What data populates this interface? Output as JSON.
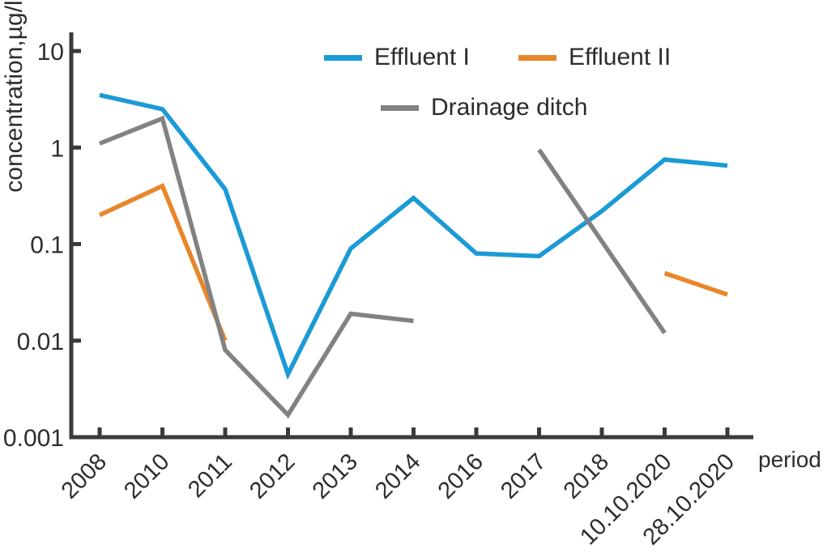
{
  "figure": {
    "background": "#ffffff",
    "axis_color": "#3a3a3a",
    "text_color": "#2d2d2d"
  },
  "axes": {
    "y_label": "concentration,µg/l",
    "x_label": "period",
    "y_ticks": [
      "10",
      "1",
      "0.1",
      "0.01",
      "0.001"
    ],
    "y_scale": "log"
  },
  "legend": {
    "items": [
      {
        "label": "Effluent I",
        "color": "#1b9ad6"
      },
      {
        "label": "Effluent II",
        "color": "#e8862a"
      },
      {
        "label": "Drainage ditch",
        "color": "#828282"
      }
    ]
  },
  "chart_data": {
    "type": "line",
    "title": "",
    "xlabel": "period",
    "ylabel": "concentration,µg/l",
    "y_scale": "log",
    "ylim": [
      0.001,
      10
    ],
    "grid": false,
    "legend_position": "top-center",
    "categories": [
      "2008",
      "2010",
      "2011",
      "2012",
      "2013",
      "2014",
      "2016",
      "2017",
      "2018",
      "10.10.2020",
      "28.10.2020"
    ],
    "series": [
      {
        "name": "Effluent I",
        "color": "#1b9ad6",
        "segments": [
          [
            [
              "2008",
              3.5
            ],
            [
              "2010",
              2.5
            ],
            [
              "2011",
              0.37
            ],
            [
              "2012",
              0.0045
            ],
            [
              "2013",
              0.09
            ],
            [
              "2014",
              0.3
            ],
            [
              "2016",
              0.08
            ],
            [
              "2017",
              0.075
            ],
            [
              "2018",
              0.22
            ],
            [
              "10.10.2020",
              0.75
            ],
            [
              "28.10.2020",
              0.65
            ]
          ]
        ]
      },
      {
        "name": "Effluent II",
        "color": "#e8862a",
        "segments": [
          [
            [
              "2008",
              0.2
            ],
            [
              "2010",
              0.4
            ],
            [
              "2011",
              0.01
            ]
          ],
          [
            [
              "10.10.2020",
              0.05
            ],
            [
              "28.10.2020",
              0.03
            ]
          ]
        ]
      },
      {
        "name": "Drainage ditch",
        "color": "#828282",
        "segments": [
          [
            [
              "2008",
              1.1
            ],
            [
              "2010",
              2.0
            ],
            [
              "2011",
              0.008
            ],
            [
              "2012",
              0.0017
            ],
            [
              "2013",
              0.019
            ],
            [
              "2014",
              0.016
            ]
          ],
          [
            [
              "2017",
              0.95
            ],
            [
              "10.10.2020",
              0.012
            ]
          ]
        ]
      }
    ]
  }
}
